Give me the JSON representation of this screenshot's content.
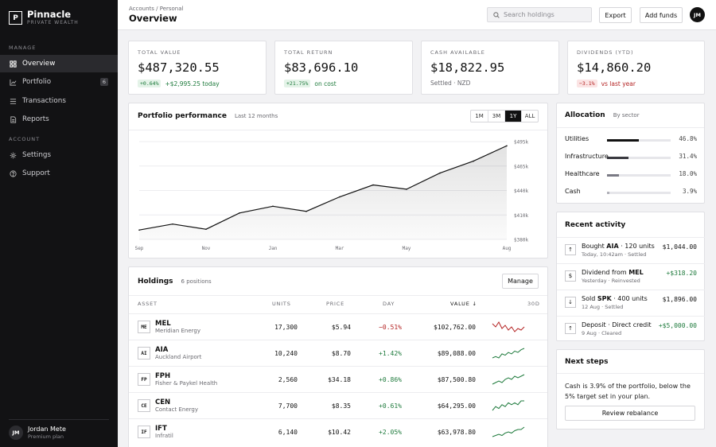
{
  "brand": {
    "logo": "P",
    "name": "Pinnacle",
    "subtitle": "PRIVATE WEALTH"
  },
  "sidebar": {
    "manage_label": "MANAGE",
    "account_label": "ACCOUNT",
    "items": [
      {
        "label": "Overview",
        "icon": "grid-icon"
      },
      {
        "label": "Portfolio",
        "icon": "chart-line-icon",
        "badge": "6"
      },
      {
        "label": "Transactions",
        "icon": "list-icon"
      },
      {
        "label": "Reports",
        "icon": "document-icon"
      },
      {
        "label": "Settings",
        "icon": "gear-icon"
      },
      {
        "label": "Support",
        "icon": "help-icon"
      }
    ],
    "user": {
      "initials": "JM",
      "name": "Jordan Mete",
      "plan": "Premium plan"
    }
  },
  "header": {
    "breadcrumb": "Accounts / Personal",
    "title": "Overview",
    "search_placeholder": "Search holdings",
    "export_label": "Export",
    "add_funds_label": "Add funds",
    "avatar": "JM"
  },
  "kpis": [
    {
      "label": "TOTAL VALUE",
      "value": "$487,320.55",
      "chip": "+0.64%",
      "note": "+$2,995.25 today",
      "tone": "pos"
    },
    {
      "label": "TOTAL RETURN",
      "value": "$83,696.10",
      "chip": "+21.75%",
      "note": "on cost",
      "tone": "pos"
    },
    {
      "label": "CASH AVAILABLE",
      "value": "$18,822.95",
      "chip": "",
      "note": "Settled · NZD",
      "tone": "mut"
    },
    {
      "label": "DIVIDENDS (YTD)",
      "value": "$14,860.20",
      "chip": "−3.1%",
      "note": "vs last year",
      "tone": "neg"
    }
  ],
  "performance": {
    "title": "Portfolio performance",
    "subtitle": "Last 12 months",
    "ranges": [
      "1M",
      "3M",
      "1Y",
      "ALL"
    ],
    "active_range": "1Y"
  },
  "chart_data": {
    "type": "area",
    "x": [
      "Sep",
      "Oct",
      "Nov",
      "Dec",
      "Jan",
      "Feb",
      "Mar",
      "Apr",
      "May",
      "Jun",
      "Jul",
      "Aug"
    ],
    "tick_labels": [
      "Sep",
      "Nov",
      "Jan",
      "Mar",
      "May",
      "Aug"
    ],
    "values": [
      391,
      398,
      392,
      411,
      419,
      413,
      430,
      444,
      439,
      458,
      472,
      490
    ],
    "y_unit": "k",
    "y_ticks": [
      "$495k",
      "$465k",
      "$440k",
      "$410k",
      "$380k"
    ],
    "ylim": [
      380,
      495
    ],
    "grid": true,
    "color": "#111111"
  },
  "holdings": {
    "title": "Holdings",
    "subtitle": "6 positions",
    "manage_label": "Manage",
    "columns": [
      "ASSET",
      "UNITS",
      "PRICE",
      "DAY",
      "VALUE ↓",
      "30D"
    ],
    "rows": [
      {
        "code": "ME",
        "symbol": "MEL",
        "name": "Meridian Energy",
        "units": "17,300",
        "price": "$5.94",
        "day": "−0.51%",
        "value": "$102,762.00",
        "trend": [
          8,
          6,
          9,
          5,
          7,
          4,
          6,
          3,
          5,
          4,
          6
        ],
        "tone": "neg"
      },
      {
        "code": "AI",
        "symbol": "AIA",
        "name": "Auckland Airport",
        "units": "10,240",
        "price": "$8.70",
        "day": "+1.42%",
        "value": "$89,088.00",
        "trend": [
          3,
          4,
          3,
          6,
          5,
          7,
          6,
          8,
          7,
          9,
          10
        ],
        "tone": "pos"
      },
      {
        "code": "FP",
        "symbol": "FPH",
        "name": "Fisher & Paykel Health",
        "units": "2,560",
        "price": "$34.18",
        "day": "+0.86%",
        "value": "$87,500.80",
        "trend": [
          3,
          4,
          5,
          4,
          6,
          7,
          6,
          8,
          7,
          8,
          9
        ],
        "tone": "pos"
      },
      {
        "code": "CE",
        "symbol": "CEN",
        "name": "Contact Energy",
        "units": "7,700",
        "price": "$8.35",
        "day": "+0.61%",
        "value": "$64,295.00",
        "trend": [
          3,
          5,
          4,
          6,
          5,
          7,
          6,
          7,
          6,
          8,
          8
        ],
        "tone": "pos"
      },
      {
        "code": "IF",
        "symbol": "IFT",
        "name": "Infratil",
        "units": "6,140",
        "price": "$10.42",
        "day": "+2.05%",
        "value": "$63,978.80",
        "trend": [
          2,
          3,
          4,
          3,
          5,
          6,
          5,
          7,
          8,
          8,
          10
        ],
        "tone": "pos"
      }
    ]
  },
  "allocation": {
    "title": "Allocation",
    "subtitle": "By sector",
    "items": [
      {
        "label": "Utilities",
        "pct": "46.8%",
        "value": 46.8,
        "color": "#111111"
      },
      {
        "label": "Infrastructure",
        "pct": "31.4%",
        "value": 31.4,
        "color": "#3a3a40"
      },
      {
        "label": "Healthcare",
        "pct": "18.0%",
        "value": 18.0,
        "color": "#7a7a84"
      },
      {
        "label": "Cash",
        "pct": "3.9%",
        "value": 3.9,
        "color": "#b0b0b8"
      }
    ]
  },
  "activity": {
    "title": "Recent activity",
    "items": [
      {
        "icon": "↑",
        "pre": "Bought ",
        "bold": "AIA",
        "post": " · 120 units",
        "sub": "Today, 10:42am · Settled",
        "amount": "$1,044.00",
        "tone": "neutral"
      },
      {
        "icon": "$",
        "pre": "Dividend from ",
        "bold": "MEL",
        "post": "",
        "sub": "Yesterday · Reinvested",
        "amount": "+$318.20",
        "tone": "pos"
      },
      {
        "icon": "↓",
        "pre": "Sold ",
        "bold": "SPK",
        "post": " · 400 units",
        "sub": "12 Aug · Settled",
        "amount": "$1,896.00",
        "tone": "neutral"
      },
      {
        "icon": "↑",
        "pre": "Deposit · Direct credit",
        "bold": "",
        "post": "",
        "sub": "9 Aug · Cleared",
        "amount": "+$5,000.00",
        "tone": "pos"
      }
    ]
  },
  "next_steps": {
    "title": "Next steps",
    "text": "Cash is 3.9% of the portfolio, below the 5% target set in your plan.",
    "button": "Review rebalance"
  }
}
